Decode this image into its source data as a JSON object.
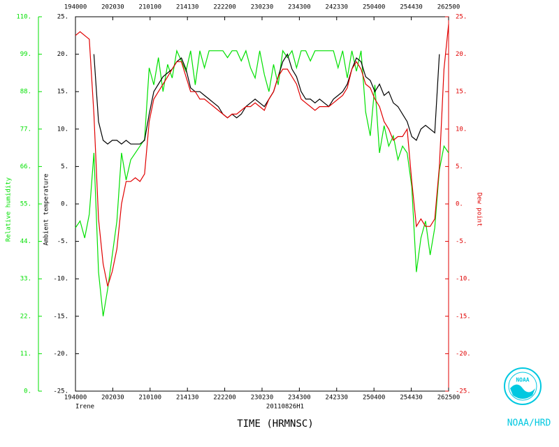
{
  "chart_data": {
    "type": "line",
    "storm": "Irene",
    "flight": "20110826H1",
    "x_label": "TIME (HRMNSC)",
    "y_label": "Ambient temperature",
    "y2_label": "Dew point",
    "y3_label": "Relative humidity",
    "org": "NOAA/HRD",
    "logo_text": "NOAA",
    "xlim": [
      1180,
      1585
    ],
    "xticks": [
      {
        "value": 1180,
        "label": "194000"
      },
      {
        "value": 1220.5,
        "label": "202030"
      },
      {
        "value": 1261,
        "label": "210100"
      },
      {
        "value": 1301.5,
        "label": "214130"
      },
      {
        "value": 1342,
        "label": "222200"
      },
      {
        "value": 1382.5,
        "label": "230230"
      },
      {
        "value": 1423,
        "label": "234300"
      },
      {
        "value": 1463.5,
        "label": "242330"
      },
      {
        "value": 1504,
        "label": "250400"
      },
      {
        "value": 1544.5,
        "label": "254430"
      },
      {
        "value": 1585,
        "label": "262500"
      }
    ],
    "ylim": [
      -25,
      25
    ],
    "yticks": [
      {
        "value": 25,
        "label": "25."
      },
      {
        "value": 20,
        "label": "20."
      },
      {
        "value": 15,
        "label": "15."
      },
      {
        "value": 10,
        "label": "10."
      },
      {
        "value": 5,
        "label": "5."
      },
      {
        "value": 0,
        "label": "0."
      },
      {
        "value": -5,
        "label": "-5."
      },
      {
        "value": -10,
        "label": "-10."
      },
      {
        "value": -15,
        "label": "-15."
      },
      {
        "value": -20,
        "label": "-20."
      },
      {
        "value": -25,
        "label": "-25."
      }
    ],
    "y2lim": [
      -25,
      25
    ],
    "y2ticks": [
      {
        "value": 25,
        "label": "25."
      },
      {
        "value": 20,
        "label": "20."
      },
      {
        "value": 15,
        "label": "15."
      },
      {
        "value": 10,
        "label": "10."
      },
      {
        "value": 5,
        "label": "5."
      },
      {
        "value": 0,
        "label": "0."
      },
      {
        "value": -5,
        "label": "-5."
      },
      {
        "value": -10,
        "label": "-10."
      },
      {
        "value": -15,
        "label": "-15."
      },
      {
        "value": -20,
        "label": "-20."
      },
      {
        "value": -25,
        "label": "-25."
      }
    ],
    "y3lim": [
      0,
      110
    ],
    "y3ticks": [
      {
        "value": 110,
        "label": "110."
      },
      {
        "value": 99,
        "label": "99."
      },
      {
        "value": 88,
        "label": "88."
      },
      {
        "value": 77,
        "label": "77."
      },
      {
        "value": 66,
        "label": "66."
      },
      {
        "value": 55,
        "label": "55."
      },
      {
        "value": 44,
        "label": "44."
      },
      {
        "value": 33,
        "label": "33."
      },
      {
        "value": 22,
        "label": "22."
      },
      {
        "value": 11,
        "label": "11."
      },
      {
        "value": 0,
        "label": "0."
      }
    ],
    "x": [
      1180,
      1185,
      1190,
      1195,
      1200,
      1205,
      1210,
      1215,
      1220,
      1225,
      1230,
      1235,
      1240,
      1245,
      1250,
      1255,
      1260,
      1265,
      1270,
      1275,
      1280,
      1285,
      1290,
      1295,
      1300,
      1305,
      1310,
      1315,
      1320,
      1325,
      1330,
      1335,
      1340,
      1345,
      1350,
      1355,
      1360,
      1365,
      1370,
      1375,
      1380,
      1385,
      1390,
      1395,
      1400,
      1405,
      1410,
      1415,
      1420,
      1425,
      1430,
      1435,
      1440,
      1445,
      1450,
      1455,
      1460,
      1465,
      1470,
      1475,
      1480,
      1485,
      1490,
      1495,
      1500,
      1505,
      1510,
      1515,
      1520,
      1525,
      1530,
      1535,
      1540,
      1545,
      1550,
      1555,
      1560,
      1565,
      1570,
      1575,
      1580,
      1585
    ],
    "series": [
      {
        "name": "Relative humidity",
        "color": "#00e000",
        "axis": "y3",
        "values": [
          48,
          50,
          45,
          52,
          70,
          35,
          22,
          30,
          40,
          50,
          70,
          62,
          68,
          70,
          72,
          74,
          95,
          90,
          98,
          88,
          96,
          92,
          100,
          97,
          94,
          100,
          90,
          100,
          95,
          100,
          100,
          100,
          100,
          98,
          100,
          100,
          97,
          100,
          95,
          92,
          100,
          93,
          88,
          96,
          90,
          100,
          98,
          100,
          95,
          100,
          100,
          97,
          100,
          100,
          100,
          100,
          100,
          95,
          100,
          92,
          100,
          94,
          100,
          82,
          75,
          90,
          70,
          78,
          72,
          75,
          68,
          72,
          70,
          60,
          35,
          45,
          50,
          40,
          48,
          65,
          72,
          70
        ]
      },
      {
        "name": "Ambient temperature",
        "color": "#000000",
        "axis": "y",
        "values": [
          null,
          null,
          null,
          null,
          20,
          11,
          8.5,
          8,
          8.5,
          8.5,
          8,
          8.5,
          8,
          8,
          8,
          8.5,
          12,
          15,
          16,
          17,
          17.5,
          18,
          19,
          19.5,
          18,
          15.5,
          15,
          15,
          14.5,
          14,
          13.5,
          13,
          12,
          11.5,
          12,
          11.5,
          12,
          13,
          13.5,
          14,
          13.5,
          13,
          14,
          15,
          17,
          19,
          20,
          18,
          17,
          15,
          14,
          14,
          13.5,
          14,
          13.5,
          13,
          14,
          14.5,
          15,
          16,
          18,
          19.5,
          19,
          17,
          16.5,
          15,
          16,
          14.5,
          15,
          13.5,
          13,
          12,
          11,
          9,
          8.5,
          10,
          10.5,
          10,
          9.5,
          20,
          null,
          null
        ]
      },
      {
        "name": "Dew point",
        "color": "#e00000",
        "axis": "y2",
        "values": [
          22.5,
          23,
          22.5,
          22,
          12,
          -2,
          -8,
          -11,
          -9,
          -6,
          0,
          3,
          3,
          3.5,
          3,
          4,
          11,
          14,
          15,
          16,
          17,
          18,
          19,
          19,
          17,
          15,
          15,
          14,
          14,
          13.5,
          13,
          12.5,
          12,
          11.5,
          12,
          12,
          12.5,
          13,
          13,
          13.5,
          13,
          12.5,
          14,
          15,
          17,
          18,
          18,
          17,
          16,
          14,
          13.5,
          13,
          12.5,
          13,
          13,
          13,
          13.5,
          14,
          14.5,
          15.5,
          18,
          19,
          18,
          16,
          15.5,
          14,
          13,
          11,
          10,
          8.5,
          9,
          9,
          10,
          3,
          -3,
          -2,
          -3,
          -3,
          -2,
          5,
          18,
          24
        ]
      }
    ]
  }
}
